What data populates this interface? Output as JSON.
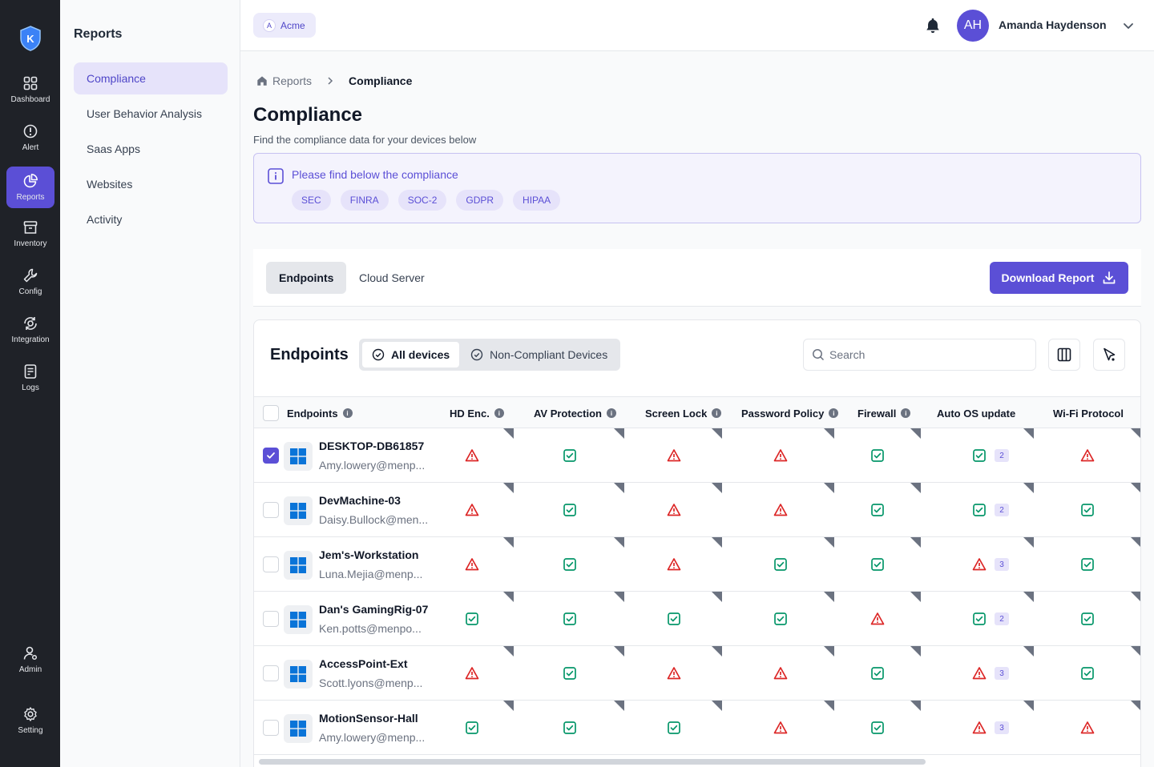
{
  "rail": {
    "items": [
      {
        "label": "Dashboard",
        "icon": "grid-icon"
      },
      {
        "label": "Alert",
        "icon": "alert-icon"
      },
      {
        "label": "Reports",
        "icon": "pie-chart-icon"
      },
      {
        "label": "Inventory",
        "icon": "archive-icon"
      },
      {
        "label": "Config",
        "icon": "wrench-icon"
      },
      {
        "label": "Integration",
        "icon": "integration-icon"
      },
      {
        "label": "Logs",
        "icon": "logs-icon"
      }
    ],
    "bottom": [
      {
        "label": "Admin",
        "icon": "admin-icon"
      },
      {
        "label": "Setting",
        "icon": "gear-icon"
      }
    ],
    "active": "Reports",
    "logo_letter": "K"
  },
  "subnav": {
    "title": "Reports",
    "items": [
      "Compliance",
      "User Behavior Analysis",
      "Saas Apps",
      "Websites",
      "Activity"
    ],
    "active": "Compliance"
  },
  "header": {
    "org": "Acme",
    "org_initial": "A",
    "avatar_initials": "AH",
    "user_name": "Amanda Haydenson"
  },
  "breadcrumb": {
    "root": "Reports",
    "current": "Compliance"
  },
  "page": {
    "title": "Compliance",
    "subtitle": "Find the compliance data for your devices below"
  },
  "info": {
    "text": "Please find below the compliance",
    "standards": [
      "SEC",
      "FINRA",
      "SOC-2",
      "GDPR",
      "HIPAA"
    ]
  },
  "tabs": {
    "items": [
      "Endpoints",
      "Cloud Server"
    ],
    "active": "Endpoints",
    "download_label": "Download Report"
  },
  "table": {
    "title": "Endpoints",
    "filters": [
      "All devices",
      "Non-Compliant Devices"
    ],
    "active_filter": "All devices",
    "search_placeholder": "Search",
    "columns": [
      "Endpoints",
      "HD Enc.",
      "AV Protection",
      "Screen Lock",
      "Password Policy",
      "Firewall",
      "Auto OS update",
      "Wi-Fi  Protocol"
    ],
    "rows": [
      {
        "name": "DESKTOP-DB61857",
        "user": "Amy.lowery@menp...",
        "checked": true,
        "status": [
          "fail",
          "pass",
          "fail",
          "fail",
          "pass",
          "pass",
          "fail"
        ],
        "os_count": "2"
      },
      {
        "name": "DevMachine-03",
        "user": "Daisy.Bullock@men...",
        "checked": false,
        "status": [
          "fail",
          "pass",
          "fail",
          "fail",
          "pass",
          "pass",
          "pass"
        ],
        "os_count": "2"
      },
      {
        "name": "Jem's-Workstation",
        "user": "Luna.Mejia@menp...",
        "checked": false,
        "status": [
          "fail",
          "pass",
          "fail",
          "pass",
          "pass",
          "fail",
          "pass"
        ],
        "os_count": "3"
      },
      {
        "name": "Dan's GamingRig-07",
        "user": "Ken.potts@menpo...",
        "checked": false,
        "status": [
          "pass",
          "pass",
          "pass",
          "pass",
          "fail",
          "pass",
          "pass"
        ],
        "os_count": "2"
      },
      {
        "name": "AccessPoint-Ext",
        "user": "Scott.lyons@menp...",
        "checked": false,
        "status": [
          "fail",
          "pass",
          "fail",
          "fail",
          "pass",
          "fail",
          "pass"
        ],
        "os_count": "3"
      },
      {
        "name": "MotionSensor-Hall",
        "user": "Amy.lowery@menp...",
        "checked": false,
        "status": [
          "pass",
          "pass",
          "pass",
          "fail",
          "pass",
          "fail",
          "fail"
        ],
        "os_count": "3"
      }
    ]
  },
  "colors": {
    "accent": "#5b4fd6",
    "pass": "#059669",
    "fail": "#dc2626",
    "rail_bg": "#1f2228"
  }
}
